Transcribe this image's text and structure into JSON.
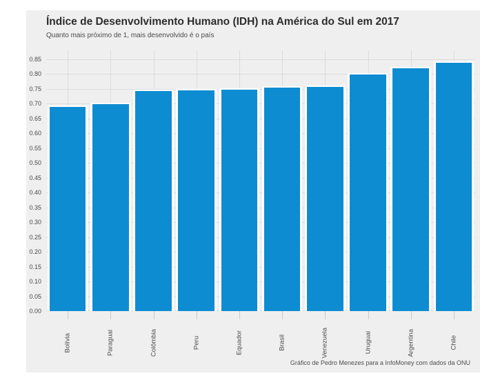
{
  "colors": {
    "page_background": "#ffffff",
    "panel_background": "#efefef",
    "gridline": "#dcdcdc",
    "tick_mark": "#c9c9c9",
    "bar": "#0e8cd2",
    "title_text": "#2d2d2d",
    "axis_text": "#4a4a4a"
  },
  "chart_data": {
    "type": "bar",
    "title": "Índice de Desenvolvimento Humano (IDH) na América do Sul em 2017",
    "subtitle": "Quanto mais próximo de 1, mais desenvolvido é o país",
    "caption": "Gráfico de Pedro Menezes para a InfoMoney com dados da ONU",
    "xlabel": "",
    "ylabel": "",
    "categories": [
      "Bolívia",
      "Paraguai",
      "Colômbia",
      "Peru",
      "Equador",
      "Brasil",
      "Venezuela",
      "Uruguai",
      "Argentina",
      "Chile"
    ],
    "values": [
      0.693,
      0.702,
      0.747,
      0.75,
      0.752,
      0.759,
      0.761,
      0.804,
      0.825,
      0.843
    ],
    "ylim": [
      0,
      0.88
    ],
    "yticks": [
      0.0,
      0.05,
      0.1,
      0.15,
      0.2,
      0.25,
      0.3,
      0.35,
      0.4,
      0.45,
      0.5,
      0.55,
      0.6,
      0.65,
      0.7,
      0.75,
      0.8,
      0.85
    ],
    "ytick_labels": [
      "0.00",
      "0.05",
      "0.10",
      "0.15",
      "0.20",
      "0.25",
      "0.30",
      "0.35",
      "0.40",
      "0.45",
      "0.50",
      "0.55",
      "0.60",
      "0.65",
      "0.70",
      "0.75",
      "0.80",
      "0.85"
    ],
    "grid": true,
    "x_labels_rotated_degrees": 90,
    "bar_color": "#0e8cd2",
    "legend": "none"
  }
}
